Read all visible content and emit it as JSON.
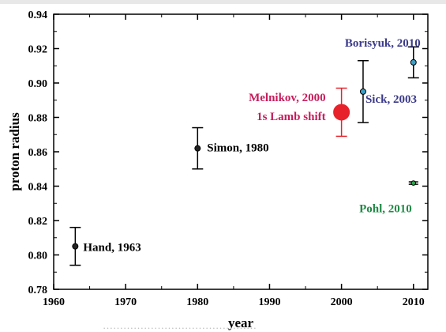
{
  "chart_data": {
    "type": "scatter",
    "title": "",
    "xlabel": "year",
    "ylabel": "proton radius",
    "xlim": [
      1960,
      2012
    ],
    "ylim": [
      0.78,
      0.94
    ],
    "x_ticks": [
      1960,
      1970,
      1980,
      1990,
      2000,
      2010
    ],
    "y_ticks": [
      0.78,
      0.8,
      0.82,
      0.84,
      0.86,
      0.88,
      0.9,
      0.92,
      0.94
    ],
    "y_tick_labels": [
      "0.78",
      "0.80",
      "0.82",
      "0.84",
      "0.86",
      "0.88",
      "0.90",
      "0.92",
      "0.94"
    ],
    "points": [
      {
        "x": 1963,
        "y": 0.805,
        "err_low": 0.794,
        "err_high": 0.816,
        "label": "Hand, 1963",
        "color": "#222222",
        "label_color": "#000000"
      },
      {
        "x": 1980,
        "y": 0.862,
        "err_low": 0.85,
        "err_high": 0.874,
        "label": "Simon, 1980",
        "color": "#222222",
        "label_color": "#000000"
      },
      {
        "x": 2000,
        "y": 0.883,
        "err_low": 0.869,
        "err_high": 0.897,
        "label": "Melnikov, 2000",
        "label2": "1s Lamb shift",
        "color": "#e8222a",
        "label_color": "#c71c5a"
      },
      {
        "x": 2003,
        "y": 0.895,
        "err_low": 0.877,
        "err_high": 0.913,
        "label": "Sick, 2003",
        "color": "#3aa0c8",
        "label_color": "#3b3a8a"
      },
      {
        "x": 2010,
        "y": 0.912,
        "err_low": 0.903,
        "err_high": 0.921,
        "label": "Borisyuk, 2010",
        "color": "#3aa0c8",
        "label_color": "#3b3a8a"
      },
      {
        "x": 2010,
        "y": 0.8418,
        "err_low": 0.8411,
        "err_high": 0.8425,
        "label": "Pohl, 2010",
        "color": "#2aa84a",
        "label_color": "#1f8a45"
      }
    ]
  },
  "cut_off_caption": "………………………………………"
}
